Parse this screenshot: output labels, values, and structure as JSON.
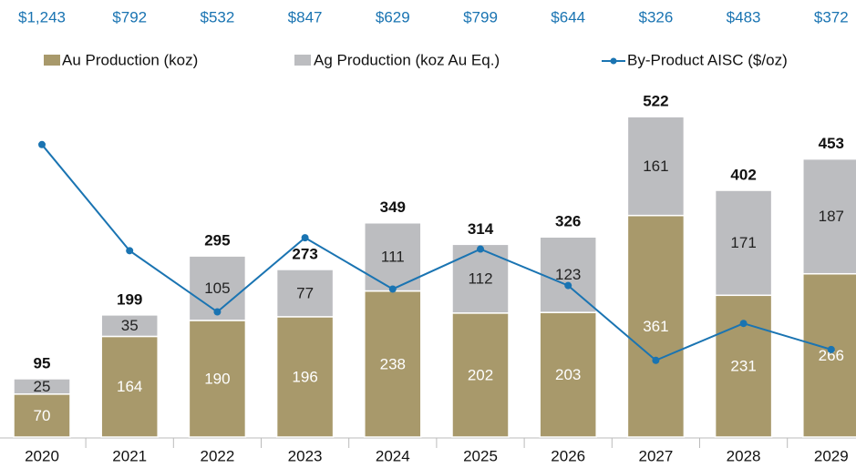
{
  "chart_data": {
    "type": "bar",
    "stacked": true,
    "categories": [
      "2020",
      "2021",
      "2022",
      "2023",
      "2024",
      "2025",
      "2026",
      "2027",
      "2028",
      "2029"
    ],
    "series": [
      {
        "name": "Au Production (koz)",
        "color": "#a8996b",
        "values": [
          70,
          164,
          190,
          196,
          238,
          202,
          203,
          361,
          231,
          266
        ]
      },
      {
        "name": "Ag Production (koz Au Eq.)",
        "color": "#bcbdc0",
        "values": [
          25,
          35,
          105,
          77,
          111,
          112,
          123,
          161,
          171,
          187
        ]
      },
      {
        "name": "By-Product AISC ($/oz)",
        "color": "#1a74b2",
        "type": "line",
        "axis": "y2",
        "values": [
          1243,
          792,
          532,
          847,
          629,
          799,
          644,
          326,
          483,
          372
        ],
        "value_labels": [
          "$1,243",
          "$792",
          "$532",
          "$847",
          "$629",
          "$799",
          "$644",
          "$326",
          "$483",
          "$372"
        ]
      }
    ],
    "totals": [
      95,
      199,
      295,
      273,
      349,
      314,
      326,
      522,
      402,
      453
    ],
    "ylim": [
      0,
      575
    ],
    "y2lim": [
      0,
      1500
    ],
    "legend": "top"
  }
}
